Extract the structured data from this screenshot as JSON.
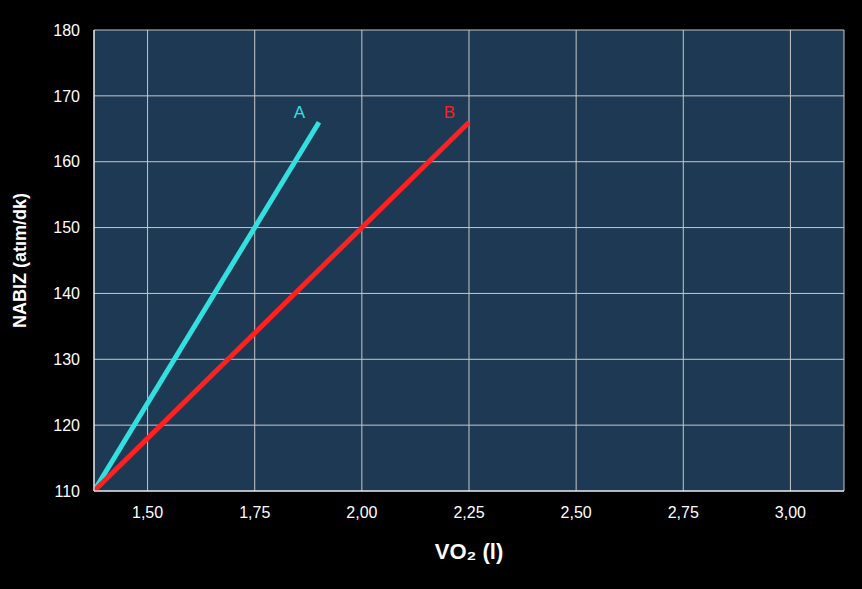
{
  "chart_data": {
    "type": "line",
    "x_label": "VO₂ (l)",
    "y_label": "NABIZ (atım/dk)",
    "xlim": [
      1.375,
      3.125
    ],
    "xticks": [
      {
        "value": 1.5,
        "label": "1,50"
      },
      {
        "value": 1.75,
        "label": "1,75"
      },
      {
        "value": 2.0,
        "label": "2,00"
      },
      {
        "value": 2.25,
        "label": "2,25"
      },
      {
        "value": 2.5,
        "label": "2,50"
      },
      {
        "value": 2.75,
        "label": "2,75"
      },
      {
        "value": 3.0,
        "label": "3,00"
      }
    ],
    "ylim": [
      110,
      180
    ],
    "yticks": [
      110,
      120,
      130,
      140,
      150,
      160,
      170,
      180
    ],
    "grid": true,
    "series": [
      {
        "name": "A",
        "color": "#33e0e0",
        "x": [
          1.375,
          1.9
        ],
        "values": [
          110,
          166
        ]
      },
      {
        "name": "B",
        "color": "#ff2020",
        "x": [
          1.375,
          2.25
        ],
        "values": [
          110,
          166
        ]
      }
    ]
  }
}
